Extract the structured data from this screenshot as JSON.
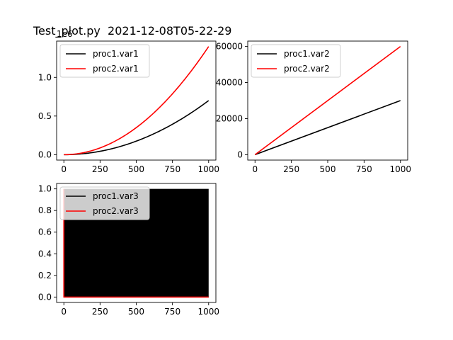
{
  "figure_title": "Test_plot.py  2021-12-08T05-22-29",
  "chart_data": [
    {
      "type": "line",
      "id": "ax1",
      "title": "",
      "xlabel": "",
      "ylabel": "",
      "offset_text": "1e6",
      "xlim": [
        -50,
        1050
      ],
      "ylim": [
        -0.07,
        1.47
      ],
      "xticks": [
        0,
        250,
        500,
        750,
        1000
      ],
      "xtick_labels": [
        "0",
        "250",
        "500",
        "750",
        "1000"
      ],
      "yticks": [
        0.0,
        0.5,
        1.0
      ],
      "ytick_labels": [
        "0.0",
        "0.5",
        "1.0"
      ],
      "legend_position": "upper-left",
      "series": [
        {
          "name": "proc1.var1",
          "color": "#000000",
          "formula": "0.7*(x/1000)^2",
          "x": [
            0,
            100,
            200,
            300,
            400,
            500,
            600,
            700,
            800,
            900,
            1000
          ],
          "y": [
            0.0,
            0.007,
            0.028,
            0.063,
            0.112,
            0.175,
            0.252,
            0.343,
            0.448,
            0.567,
            0.7
          ]
        },
        {
          "name": "proc2.var1",
          "color": "#ff0000",
          "formula": "1.4*(x/1000)^2",
          "x": [
            0,
            100,
            200,
            300,
            400,
            500,
            600,
            700,
            800,
            900,
            1000
          ],
          "y": [
            0.0,
            0.014,
            0.056,
            0.126,
            0.224,
            0.35,
            0.504,
            0.686,
            0.896,
            1.134,
            1.4
          ]
        }
      ]
    },
    {
      "type": "line",
      "id": "ax2",
      "title": "",
      "xlabel": "",
      "ylabel": "",
      "xlim": [
        -50,
        1050
      ],
      "ylim": [
        -3000,
        63000
      ],
      "xticks": [
        0,
        250,
        500,
        750,
        1000
      ],
      "xtick_labels": [
        "0",
        "250",
        "500",
        "750",
        "1000"
      ],
      "yticks": [
        0,
        20000,
        40000,
        60000
      ],
      "ytick_labels": [
        "0",
        "20000",
        "40000",
        "60000"
      ],
      "legend_position": "upper-left",
      "series": [
        {
          "name": "proc1.var2",
          "color": "#000000",
          "x": [
            0,
            1000
          ],
          "y": [
            0,
            30000
          ]
        },
        {
          "name": "proc2.var2",
          "color": "#ff0000",
          "x": [
            0,
            1000
          ],
          "y": [
            0,
            60000
          ]
        }
      ]
    },
    {
      "type": "line",
      "id": "ax3",
      "title": "",
      "xlabel": "",
      "ylabel": "",
      "xlim": [
        -50,
        1050
      ],
      "ylim": [
        -0.05,
        1.05
      ],
      "xticks": [
        0,
        250,
        500,
        750,
        1000
      ],
      "xtick_labels": [
        "0",
        "250",
        "500",
        "750",
        "1000"
      ],
      "yticks": [
        0.0,
        0.2,
        0.4,
        0.6,
        0.8,
        1.0
      ],
      "ytick_labels": [
        "0.0",
        "0.2",
        "0.4",
        "0.6",
        "0.8",
        "1.0"
      ],
      "legend_position": "upper-left",
      "note": "proc1.var3 alternates 0/1 every step, filling area black",
      "fill_between": {
        "x0": 0,
        "x1": 1000,
        "y0": 0,
        "y1": 1,
        "color": "#000000"
      },
      "series": [
        {
          "name": "proc1.var3",
          "color": "#000000",
          "x": [
            0,
            1000
          ],
          "y": [
            0,
            0
          ]
        },
        {
          "name": "proc2.var3",
          "color": "#ff0000",
          "x": [
            0,
            0,
            1000,
            1000
          ],
          "y": [
            1,
            0,
            0,
            0
          ]
        }
      ]
    }
  ]
}
